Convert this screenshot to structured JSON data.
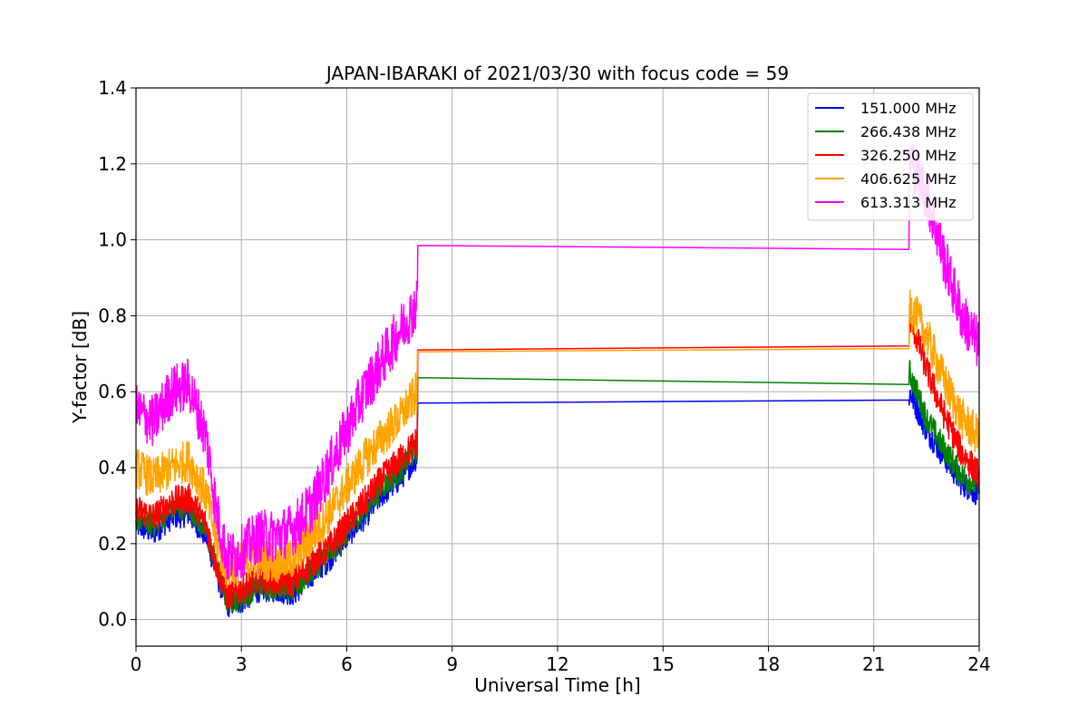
{
  "chart_data": {
    "type": "line",
    "title": "JAPAN-IBARAKI of 2021/03/30 with focus code = 59",
    "xlabel": "Universal Time [h]",
    "ylabel": "Y-factor [dB]",
    "xlim": [
      0,
      24
    ],
    "ylim": [
      -0.07,
      1.4
    ],
    "xticks": [
      0,
      3,
      6,
      9,
      12,
      15,
      18,
      21,
      24
    ],
    "xtick_labels": [
      "0",
      "3",
      "6",
      "9",
      "12",
      "15",
      "18",
      "21",
      "24"
    ],
    "yticks": [
      0.0,
      0.2,
      0.4,
      0.6,
      0.8,
      1.0,
      1.2,
      1.4
    ],
    "ytick_labels": [
      "0.0",
      "0.2",
      "0.4",
      "0.6",
      "0.8",
      "1.0",
      "1.2",
      "1.4"
    ],
    "grid": true,
    "legend_position": "top-right",
    "series": [
      {
        "name": "151.000 MHz",
        "color": "#0000ff",
        "noise": 0.035,
        "points": [
          [
            0,
            0.25
          ],
          [
            0.5,
            0.23
          ],
          [
            1,
            0.27
          ],
          [
            1.5,
            0.28
          ],
          [
            2,
            0.22
          ],
          [
            2.3,
            0.12
          ],
          [
            2.6,
            0.04
          ],
          [
            3,
            0.05
          ],
          [
            3.5,
            0.08
          ],
          [
            4,
            0.08
          ],
          [
            4.5,
            0.07
          ],
          [
            5,
            0.12
          ],
          [
            5.5,
            0.16
          ],
          [
            6,
            0.22
          ],
          [
            6.5,
            0.27
          ],
          [
            7,
            0.33
          ],
          [
            7.5,
            0.37
          ],
          [
            8,
            0.43
          ],
          [
            8.02,
            0.57
          ],
          [
            22,
            0.575
          ],
          [
            22.02,
            0.6
          ],
          [
            22.5,
            0.5
          ],
          [
            23,
            0.43
          ],
          [
            23.5,
            0.36
          ],
          [
            24,
            0.33
          ]
        ]
      },
      {
        "name": "266.438 MHz",
        "color": "#008000",
        "noise": 0.035,
        "points": [
          [
            0,
            0.27
          ],
          [
            0.5,
            0.25
          ],
          [
            1,
            0.29
          ],
          [
            1.5,
            0.3
          ],
          [
            2,
            0.23
          ],
          [
            2.3,
            0.13
          ],
          [
            2.6,
            0.05
          ],
          [
            3,
            0.06
          ],
          [
            3.5,
            0.09
          ],
          [
            4,
            0.09
          ],
          [
            4.5,
            0.08
          ],
          [
            5,
            0.13
          ],
          [
            5.5,
            0.17
          ],
          [
            6,
            0.23
          ],
          [
            6.5,
            0.29
          ],
          [
            7,
            0.35
          ],
          [
            7.5,
            0.39
          ],
          [
            8,
            0.45
          ],
          [
            8.02,
            0.637
          ],
          [
            22,
            0.642
          ],
          [
            22.02,
            0.65
          ],
          [
            22.5,
            0.53
          ],
          [
            23,
            0.45
          ],
          [
            23.5,
            0.38
          ],
          [
            24,
            0.35
          ]
        ]
      },
      {
        "name": "326.250 MHz",
        "color": "#ff0000",
        "noise": 0.04,
        "points": [
          [
            0,
            0.29
          ],
          [
            0.5,
            0.27
          ],
          [
            1,
            0.31
          ],
          [
            1.5,
            0.32
          ],
          [
            2,
            0.25
          ],
          [
            2.3,
            0.14
          ],
          [
            2.6,
            0.06
          ],
          [
            3,
            0.08
          ],
          [
            3.5,
            0.11
          ],
          [
            4,
            0.1
          ],
          [
            4.5,
            0.1
          ],
          [
            5,
            0.15
          ],
          [
            5.5,
            0.19
          ],
          [
            6,
            0.25
          ],
          [
            6.5,
            0.31
          ],
          [
            7,
            0.37
          ],
          [
            7.5,
            0.42
          ],
          [
            8,
            0.47
          ],
          [
            8.02,
            0.71
          ],
          [
            22,
            0.72
          ],
          [
            22.02,
            0.8
          ],
          [
            22.5,
            0.66
          ],
          [
            23,
            0.54
          ],
          [
            23.5,
            0.44
          ],
          [
            24,
            0.38
          ]
        ]
      },
      {
        "name": "406.625 MHz",
        "color": "#ffa500",
        "noise": 0.055,
        "points": [
          [
            0,
            0.4
          ],
          [
            0.5,
            0.37
          ],
          [
            1,
            0.4
          ],
          [
            1.5,
            0.42
          ],
          [
            2,
            0.33
          ],
          [
            2.3,
            0.2
          ],
          [
            2.6,
            0.13
          ],
          [
            3,
            0.15
          ],
          [
            3.5,
            0.16
          ],
          [
            4,
            0.15
          ],
          [
            4.5,
            0.16
          ],
          [
            5,
            0.22
          ],
          [
            5.5,
            0.28
          ],
          [
            6,
            0.35
          ],
          [
            6.5,
            0.42
          ],
          [
            7,
            0.48
          ],
          [
            7.5,
            0.53
          ],
          [
            8,
            0.6
          ],
          [
            8.02,
            0.705
          ],
          [
            22,
            0.715
          ],
          [
            22.02,
            0.83
          ],
          [
            22.5,
            0.75
          ],
          [
            23,
            0.63
          ],
          [
            23.5,
            0.53
          ],
          [
            24,
            0.48
          ]
        ]
      },
      {
        "name": "613.313 MHz",
        "color": "#ff00ff",
        "noise": 0.07,
        "points": [
          [
            0,
            0.55
          ],
          [
            0.5,
            0.52
          ],
          [
            1,
            0.6
          ],
          [
            1.5,
            0.62
          ],
          [
            2,
            0.48
          ],
          [
            2.3,
            0.28
          ],
          [
            2.6,
            0.16
          ],
          [
            3,
            0.18
          ],
          [
            3.5,
            0.22
          ],
          [
            4,
            0.22
          ],
          [
            4.5,
            0.24
          ],
          [
            5,
            0.3
          ],
          [
            5.5,
            0.4
          ],
          [
            6,
            0.5
          ],
          [
            6.5,
            0.6
          ],
          [
            7,
            0.68
          ],
          [
            7.5,
            0.76
          ],
          [
            8,
            0.83
          ],
          [
            8.02,
            0.985
          ],
          [
            22,
            0.99
          ],
          [
            22.02,
            1.22
          ],
          [
            22.5,
            1.12
          ],
          [
            23,
            0.95
          ],
          [
            23.5,
            0.8
          ],
          [
            24,
            0.72
          ]
        ]
      }
    ]
  }
}
